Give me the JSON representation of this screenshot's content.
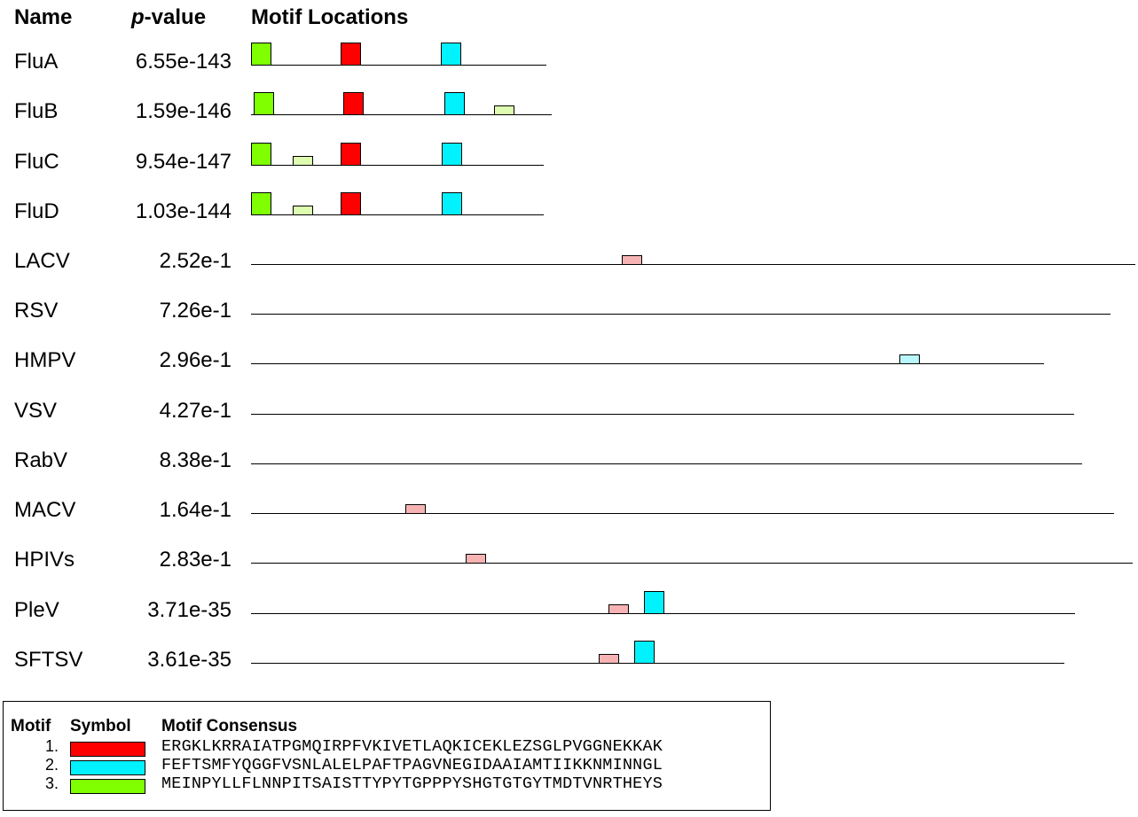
{
  "header": {
    "name": "Name",
    "p": "p",
    "value": "-value",
    "locations": "Motif Locations"
  },
  "colors": {
    "motif1": "#ff0000",
    "motif2": "#00f2ff",
    "motif3": "#7fff00",
    "motif1_weak": "#f7b3b3",
    "motif2_weak": "#b8f7fb",
    "motif3_weak": "#ddfcb0"
  },
  "sequences": [
    {
      "name": "FluA",
      "pvalue": "6.55e-143"
    },
    {
      "name": "FluB",
      "pvalue": "1.59e-146"
    },
    {
      "name": "FluC",
      "pvalue": "9.54e-147"
    },
    {
      "name": "FluD",
      "pvalue": "1.03e-144"
    },
    {
      "name": "LACV",
      "pvalue": "2.52e-1"
    },
    {
      "name": "RSV",
      "pvalue": "7.26e-1"
    },
    {
      "name": "HMPV",
      "pvalue": "2.96e-1"
    },
    {
      "name": "VSV",
      "pvalue": "4.27e-1"
    },
    {
      "name": "RabV",
      "pvalue": "8.38e-1"
    },
    {
      "name": "MACV",
      "pvalue": "1.64e-1"
    },
    {
      "name": "HPIVs",
      "pvalue": "2.83e-1"
    },
    {
      "name": "PleV",
      "pvalue": "3.71e-35"
    },
    {
      "name": "SFTSV",
      "pvalue": "3.61e-35"
    }
  ],
  "legend": {
    "col_motif": "Motif",
    "col_symbol": "Symbol",
    "col_consensus": "Motif Consensus",
    "motifs": [
      {
        "number": "1.",
        "color": "#ff0000",
        "consensus": "ERGKLKRRAIATPGMQIRPFVKIVETLAQKICEKLEZSGLPVGGNEKKAK"
      },
      {
        "number": "2.",
        "color": "#00f2ff",
        "consensus": "FEFTSMFYQGGFVSNLALELPAFTPAGVNEGIDAAIAMTIIKKNMINNGL"
      },
      {
        "number": "3.",
        "color": "#7fff00",
        "consensus": "MEINPYLLFLNNPITSAISTTYPYTGPPPYSHGTGTGYTMDTVNRTHEYS"
      }
    ]
  }
}
